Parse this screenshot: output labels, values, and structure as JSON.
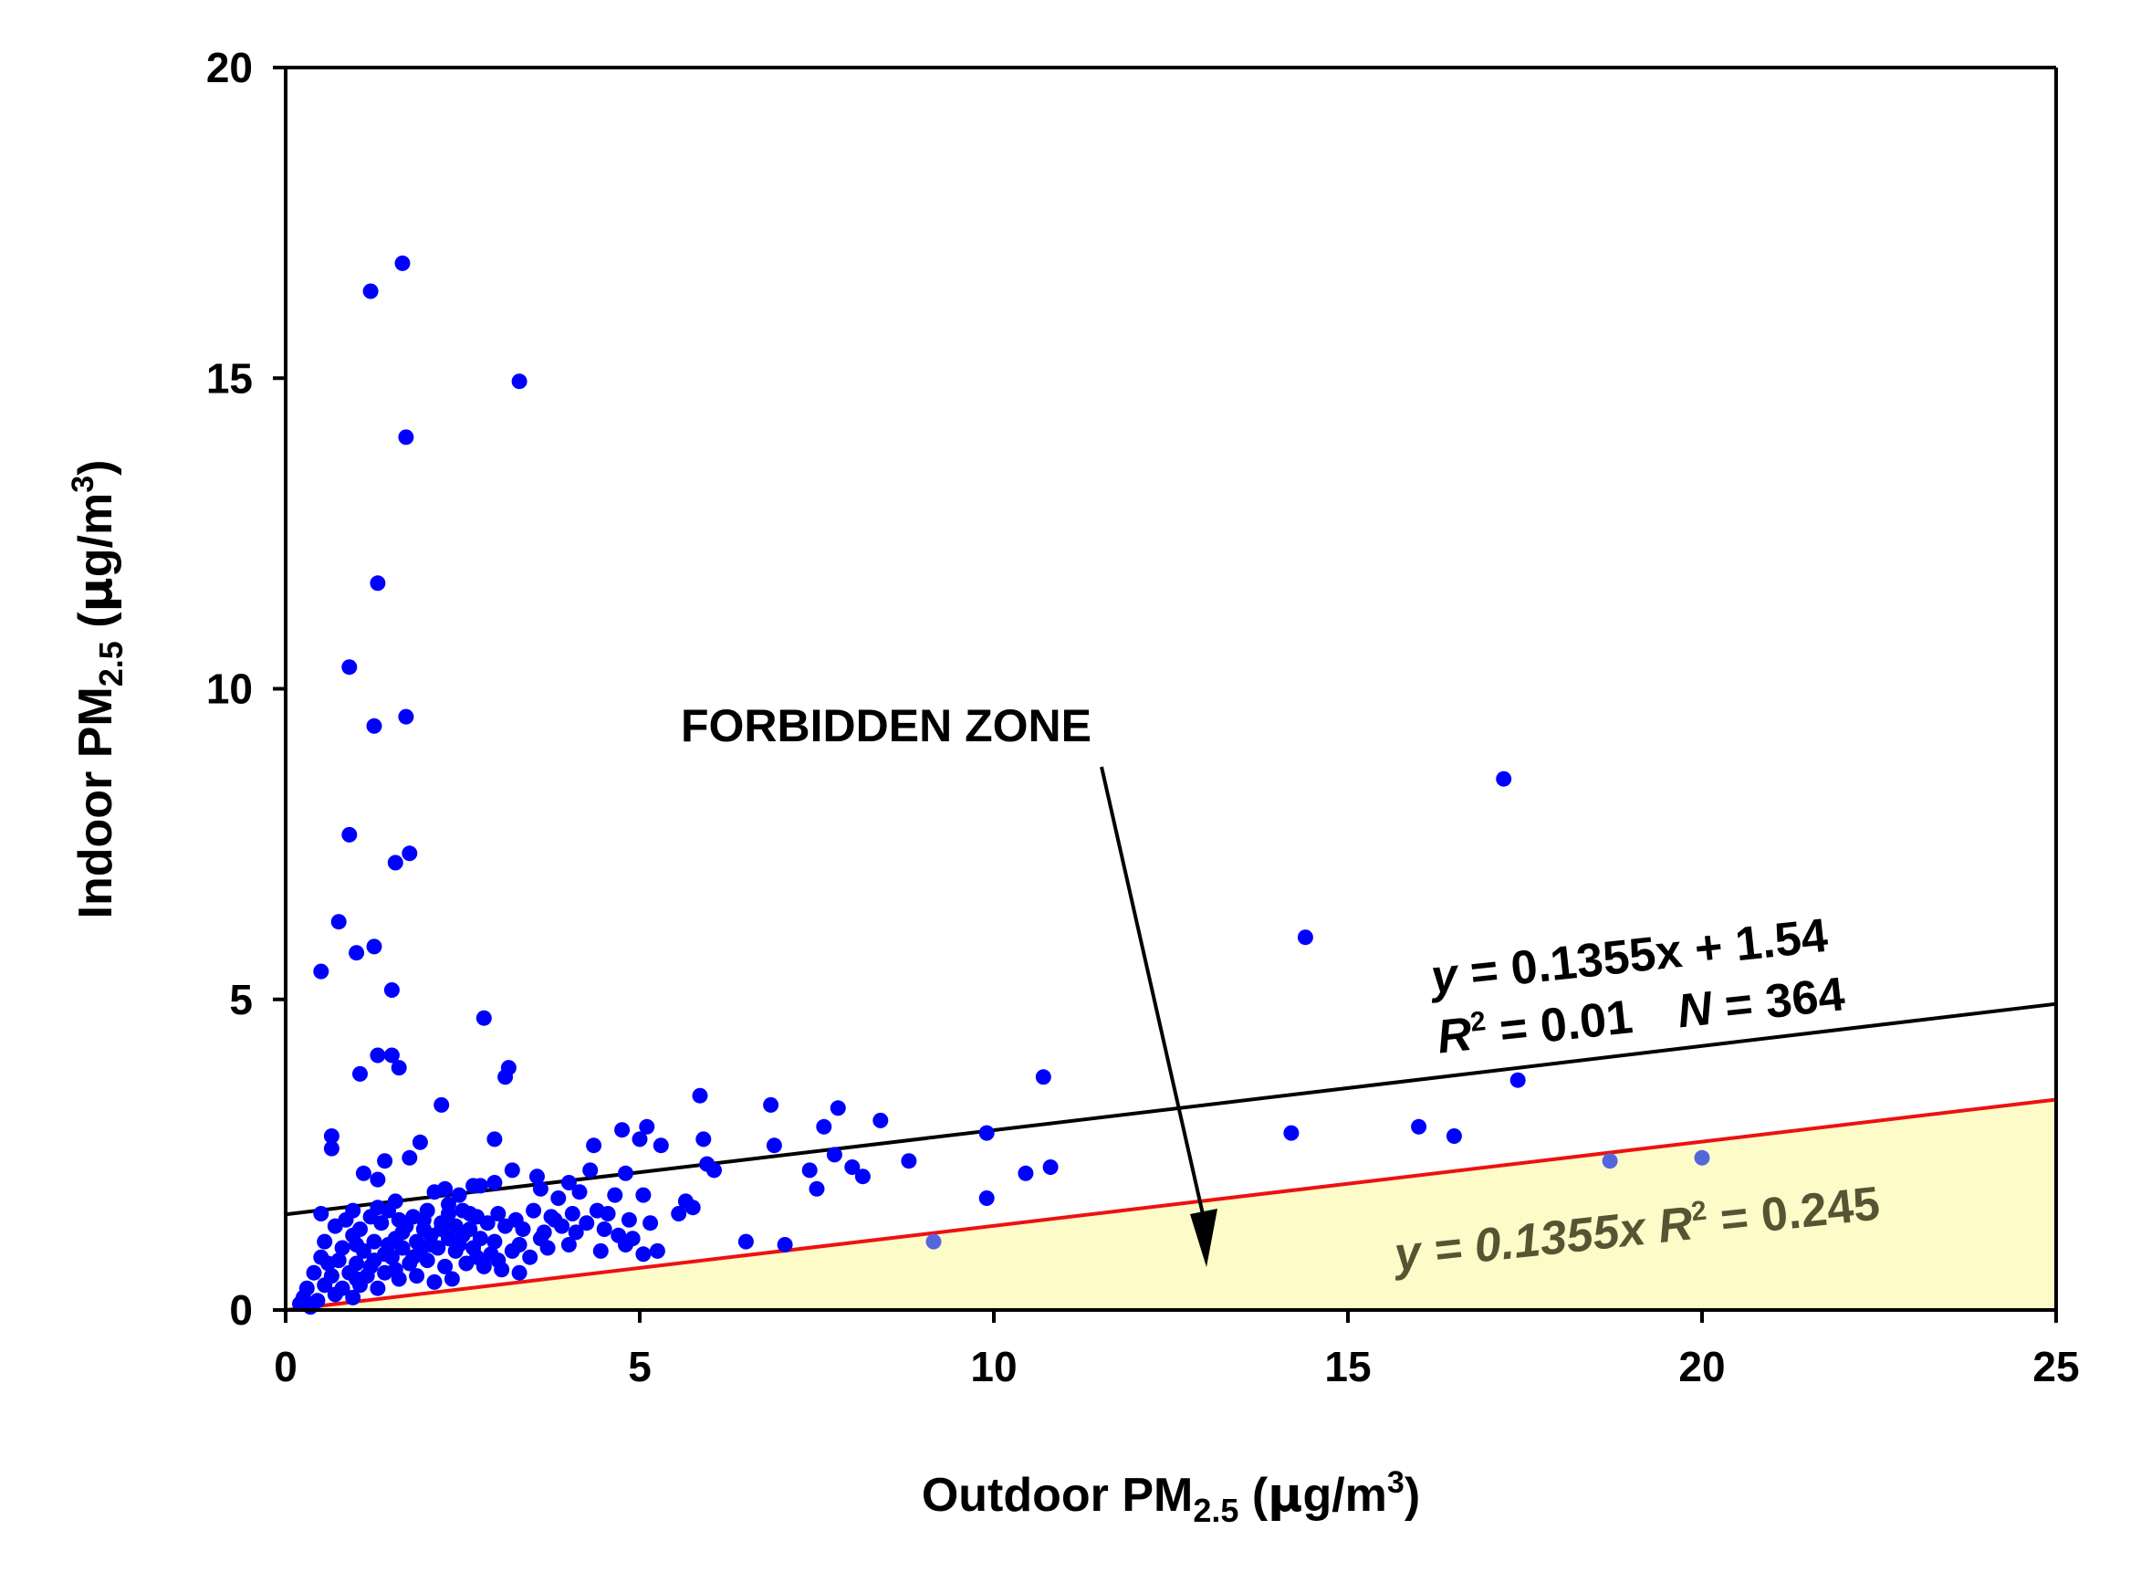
{
  "colors": {
    "points": "#0000ff",
    "faded_points": "#5566dd",
    "fit_line": "#000000",
    "forbidden_line": "#ee1111",
    "forbidden_fill": "#fdfbc8",
    "forbidden_eq_text": "#555533"
  },
  "chart_data": {
    "type": "scatter",
    "title": "",
    "xlabel": {
      "main": "Outdoor PM",
      "sub": "2.5",
      "unit_prefix": " (",
      "unit_greek": "µ",
      "unit_mid": "g/m",
      "unit_sup": "3",
      "unit_suffix": ")"
    },
    "ylabel": {
      "main": "Indoor PM",
      "sub": "2.5",
      "unit_prefix": " (",
      "unit_greek": "µ",
      "unit_mid": "g/m",
      "unit_sup": "3",
      "unit_suffix": ")"
    },
    "xlim": [
      0,
      25
    ],
    "ylim": [
      0,
      20
    ],
    "xticks": [
      "0",
      "5",
      "10",
      "15",
      "20",
      "25"
    ],
    "yticks": [
      "0",
      "5",
      "10",
      "15",
      "20"
    ],
    "xtick_values": [
      0,
      5,
      10,
      15,
      20,
      25
    ],
    "ytick_values": [
      0,
      5,
      10,
      15,
      20
    ],
    "grid": false,
    "fit_line": {
      "slope": 0.1355,
      "intercept": 1.54
    },
    "forbidden_line": {
      "slope": 0.1355,
      "intercept": 0
    },
    "annotations": {
      "fit_eq_line1": "y = 0.1355x + 1.54",
      "fit_eq_r2_label": "R",
      "fit_eq_r2_sup": "2",
      "fit_eq_r2_value": " = 0.01",
      "fit_eq_n_label": "N",
      "fit_eq_n_value": " = 364",
      "forbidden_eq_y": "y",
      "forbidden_eq_mid": " =  0.1355x  ",
      "forbidden_eq_r2_label": "R",
      "forbidden_eq_r2_sup": "2",
      "forbidden_eq_r2_value": " = 0.245",
      "forbidden_zone": "FORBIDDEN ZONE"
    },
    "points": [
      [
        1.65,
        16.85
      ],
      [
        1.2,
        16.4
      ],
      [
        3.3,
        14.95
      ],
      [
        1.7,
        14.05
      ],
      [
        1.3,
        11.7
      ],
      [
        0.9,
        10.35
      ],
      [
        1.7,
        9.55
      ],
      [
        1.25,
        9.4
      ],
      [
        17.2,
        8.55
      ],
      [
        0.9,
        7.65
      ],
      [
        1.75,
        7.35
      ],
      [
        1.55,
        7.2
      ],
      [
        0.75,
        6.25
      ],
      [
        14.4,
        6.0
      ],
      [
        0.5,
        5.45
      ],
      [
        1.25,
        5.85
      ],
      [
        1.0,
        5.75
      ],
      [
        1.5,
        5.15
      ],
      [
        2.8,
        4.7
      ],
      [
        1.3,
        4.1
      ],
      [
        1.5,
        4.1
      ],
      [
        1.6,
        3.9
      ],
      [
        1.05,
        3.8
      ],
      [
        3.15,
        3.9
      ],
      [
        3.1,
        3.75
      ],
      [
        10.7,
        3.75
      ],
      [
        17.4,
        3.7
      ],
      [
        2.2,
        3.3
      ],
      [
        5.85,
        3.45
      ],
      [
        6.85,
        3.3
      ],
      [
        7.8,
        3.25
      ],
      [
        8.4,
        3.05
      ],
      [
        5.1,
        2.95
      ],
      [
        4.75,
        2.9
      ],
      [
        5.0,
        2.75
      ],
      [
        7.6,
        2.95
      ],
      [
        9.9,
        2.85
      ],
      [
        14.2,
        2.85
      ],
      [
        16.0,
        2.95
      ],
      [
        16.5,
        2.8
      ],
      [
        4.35,
        2.65
      ],
      [
        5.9,
        2.75
      ],
      [
        6.9,
        2.65
      ],
      [
        0.65,
        2.8
      ],
      [
        0.65,
        2.6
      ],
      [
        1.9,
        2.7
      ],
      [
        2.95,
        2.75
      ],
      [
        1.4,
        2.4
      ],
      [
        1.1,
        2.2
      ],
      [
        1.3,
        2.1
      ],
      [
        1.75,
        2.45
      ],
      [
        2.65,
        2.0
      ],
      [
        3.2,
        2.25
      ],
      [
        3.55,
        2.15
      ],
      [
        4.0,
        2.05
      ],
      [
        4.3,
        2.25
      ],
      [
        4.8,
        2.2
      ],
      [
        5.3,
        2.65
      ],
      [
        5.95,
        2.35
      ],
      [
        6.05,
        2.25
      ],
      [
        7.4,
        2.25
      ],
      [
        7.75,
        2.5
      ],
      [
        8.0,
        2.3
      ],
      [
        8.15,
        2.15
      ],
      [
        8.8,
        2.4
      ],
      [
        10.45,
        2.2
      ],
      [
        10.8,
        2.3
      ],
      [
        18.7,
        2.4
      ],
      [
        20.0,
        2.45
      ],
      [
        7.5,
        1.95
      ],
      [
        9.9,
        1.8
      ],
      [
        2.1,
        1.9
      ],
      [
        2.25,
        1.95
      ],
      [
        2.45,
        1.85
      ],
      [
        2.75,
        2.0
      ],
      [
        2.95,
        2.05
      ],
      [
        3.6,
        1.95
      ],
      [
        3.85,
        1.8
      ],
      [
        4.15,
        1.9
      ],
      [
        4.65,
        1.85
      ],
      [
        5.05,
        1.85
      ],
      [
        5.65,
        1.75
      ],
      [
        5.75,
        1.65
      ],
      [
        5.55,
        1.55
      ],
      [
        0.5,
        1.55
      ],
      [
        0.95,
        1.6
      ],
      [
        1.2,
        1.5
      ],
      [
        1.45,
        1.6
      ],
      [
        1.6,
        1.45
      ],
      [
        1.8,
        1.5
      ],
      [
        2.0,
        1.6
      ],
      [
        2.3,
        1.55
      ],
      [
        2.5,
        1.6
      ],
      [
        2.7,
        1.5
      ],
      [
        3.0,
        1.55
      ],
      [
        3.25,
        1.45
      ],
      [
        3.5,
        1.6
      ],
      [
        3.75,
        1.5
      ],
      [
        4.05,
        1.55
      ],
      [
        4.4,
        1.6
      ],
      [
        4.55,
        1.55
      ],
      [
        4.85,
        1.45
      ],
      [
        5.15,
        1.4
      ],
      [
        0.7,
        1.35
      ],
      [
        1.05,
        1.3
      ],
      [
        1.35,
        1.4
      ],
      [
        1.7,
        1.35
      ],
      [
        1.95,
        1.3
      ],
      [
        2.2,
        1.4
      ],
      [
        2.4,
        1.35
      ],
      [
        2.6,
        1.3
      ],
      [
        2.85,
        1.4
      ],
      [
        3.1,
        1.35
      ],
      [
        3.35,
        1.3
      ],
      [
        3.65,
        1.25
      ],
      [
        3.9,
        1.35
      ],
      [
        4.1,
        1.25
      ],
      [
        4.5,
        1.3
      ],
      [
        4.7,
        1.2
      ],
      [
        4.9,
        1.15
      ],
      [
        4.0,
        1.05
      ],
      [
        3.7,
        1.0
      ],
      [
        3.3,
        1.05
      ],
      [
        2.95,
        1.1
      ],
      [
        2.75,
        1.15
      ],
      [
        2.5,
        1.2
      ],
      [
        2.3,
        1.15
      ],
      [
        2.05,
        1.2
      ],
      [
        1.85,
        1.1
      ],
      [
        1.55,
        1.15
      ],
      [
        1.25,
        1.1
      ],
      [
        0.95,
        1.2
      ],
      [
        0.55,
        1.1
      ],
      [
        0.8,
        1.0
      ],
      [
        1.1,
        0.95
      ],
      [
        1.4,
        0.9
      ],
      [
        1.65,
        1.0
      ],
      [
        1.9,
        0.95
      ],
      [
        2.15,
        1.0
      ],
      [
        2.4,
        0.95
      ],
      [
        2.65,
        1.0
      ],
      [
        2.9,
        0.9
      ],
      [
        3.2,
        0.95
      ],
      [
        3.45,
        0.85
      ],
      [
        4.45,
        0.95
      ],
      [
        4.8,
        1.05
      ],
      [
        5.05,
        0.9
      ],
      [
        5.25,
        0.95
      ],
      [
        6.5,
        1.1
      ],
      [
        7.05,
        1.05
      ],
      [
        9.15,
        1.1
      ],
      [
        0.5,
        0.85
      ],
      [
        0.75,
        0.8
      ],
      [
        1.0,
        0.75
      ],
      [
        1.25,
        0.8
      ],
      [
        1.5,
        0.85
      ],
      [
        1.75,
        0.75
      ],
      [
        2.0,
        0.8
      ],
      [
        2.25,
        0.7
      ],
      [
        2.55,
        0.75
      ],
      [
        2.8,
        0.7
      ],
      [
        3.05,
        0.65
      ],
      [
        3.3,
        0.6
      ],
      [
        0.4,
        0.6
      ],
      [
        0.65,
        0.55
      ],
      [
        0.9,
        0.6
      ],
      [
        1.15,
        0.55
      ],
      [
        1.4,
        0.6
      ],
      [
        1.6,
        0.5
      ],
      [
        1.85,
        0.55
      ],
      [
        2.1,
        0.45
      ],
      [
        2.35,
        0.5
      ],
      [
        0.3,
        0.35
      ],
      [
        0.55,
        0.4
      ],
      [
        0.8,
        0.35
      ],
      [
        1.05,
        0.4
      ],
      [
        1.3,
        0.35
      ],
      [
        0.25,
        0.2
      ],
      [
        0.45,
        0.15
      ],
      [
        0.7,
        0.25
      ],
      [
        0.95,
        0.2
      ],
      [
        0.35,
        0.05
      ],
      [
        0.2,
        0.1
      ],
      [
        1.2,
        0.7
      ],
      [
        1.0,
        0.5
      ],
      [
        0.6,
        0.75
      ],
      [
        1.55,
        0.65
      ],
      [
        1.8,
        0.85
      ],
      [
        2.05,
        1.05
      ],
      [
        2.2,
        1.3
      ],
      [
        1.95,
        1.45
      ],
      [
        1.65,
        1.25
      ],
      [
        2.45,
        1.05
      ],
      [
        2.7,
        0.85
      ],
      [
        3.0,
        0.8
      ],
      [
        3.6,
        1.15
      ],
      [
        3.8,
        1.45
      ],
      [
        4.25,
        1.4
      ],
      [
        2.3,
        1.7
      ],
      [
        1.55,
        1.75
      ],
      [
        1.3,
        1.65
      ],
      [
        0.85,
        1.45
      ],
      [
        1.0,
        1.05
      ],
      [
        1.45,
        1.05
      ],
      [
        2.6,
        1.55
      ]
    ],
    "faded_point_indices": [
      154,
      232,
      233
    ]
  }
}
